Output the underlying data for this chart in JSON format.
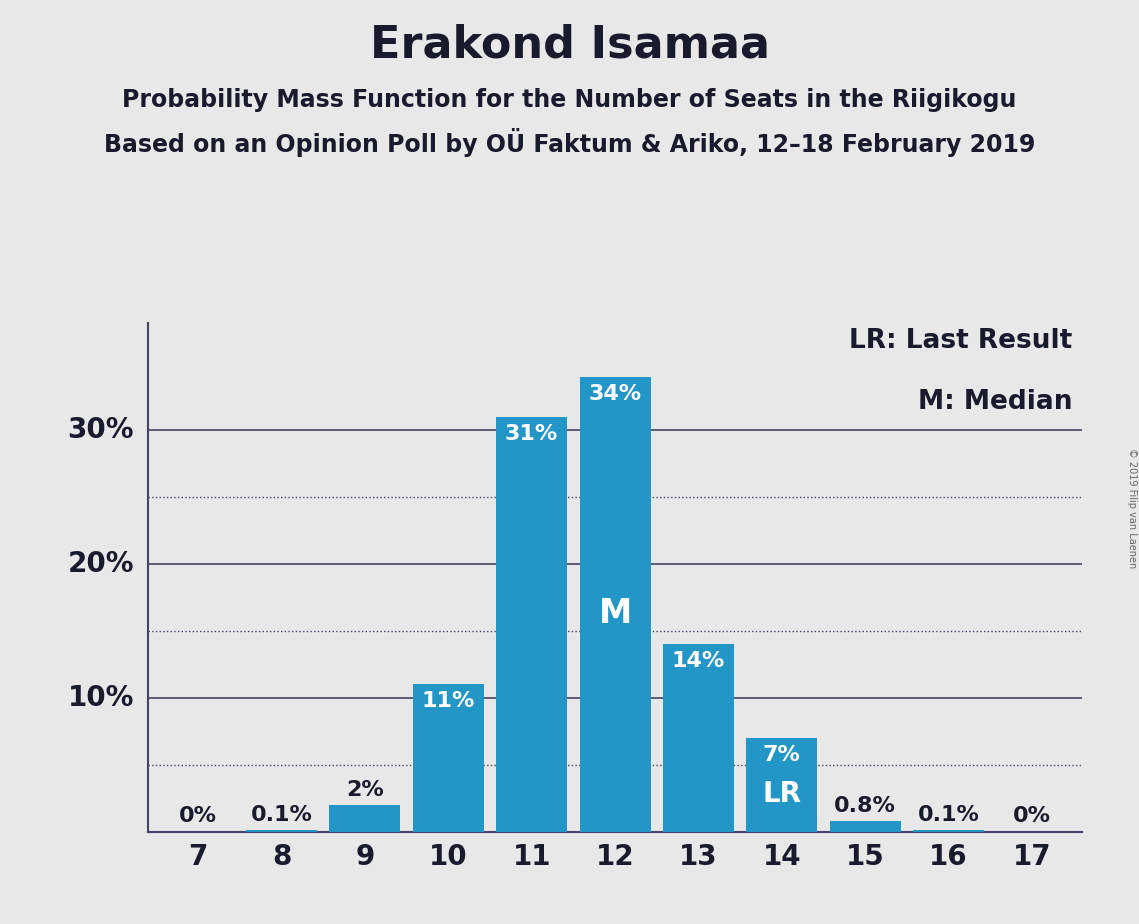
{
  "title": "Erakond Isamaa",
  "subtitle1": "Probability Mass Function for the Number of Seats in the Riigikogu",
  "subtitle2": "Based on an Opinion Poll by OÜ Faktum & Ariko, 12–18 February 2019",
  "copyright": "© 2019 Filip van Laenen",
  "seats": [
    7,
    8,
    9,
    10,
    11,
    12,
    13,
    14,
    15,
    16,
    17
  ],
  "values": [
    0.0,
    0.1,
    2.0,
    11.0,
    31.0,
    34.0,
    14.0,
    7.0,
    0.8,
    0.1,
    0.0
  ],
  "labels": [
    "0%",
    "0.1%",
    "2%",
    "11%",
    "31%",
    "34%",
    "14%",
    "7%",
    "0.8%",
    "0.1%",
    "0%"
  ],
  "bar_color": "#2396C8",
  "background_color": "#E8E8E8",
  "text_color": "#1a1a2e",
  "grid_color": "#444466",
  "median_seat": 12,
  "lr_seat": 14,
  "legend_lr": "LR: Last Result",
  "legend_m": "M: Median",
  "ylim_max": 38,
  "solid_yticks": [
    10,
    20,
    30
  ],
  "dotted_yticks": [
    5,
    15,
    25
  ],
  "title_fontsize": 32,
  "subtitle_fontsize": 17,
  "label_fontsize": 16,
  "tick_fontsize": 20,
  "legend_fontsize": 19,
  "yaxis_label_fontsize": 20
}
